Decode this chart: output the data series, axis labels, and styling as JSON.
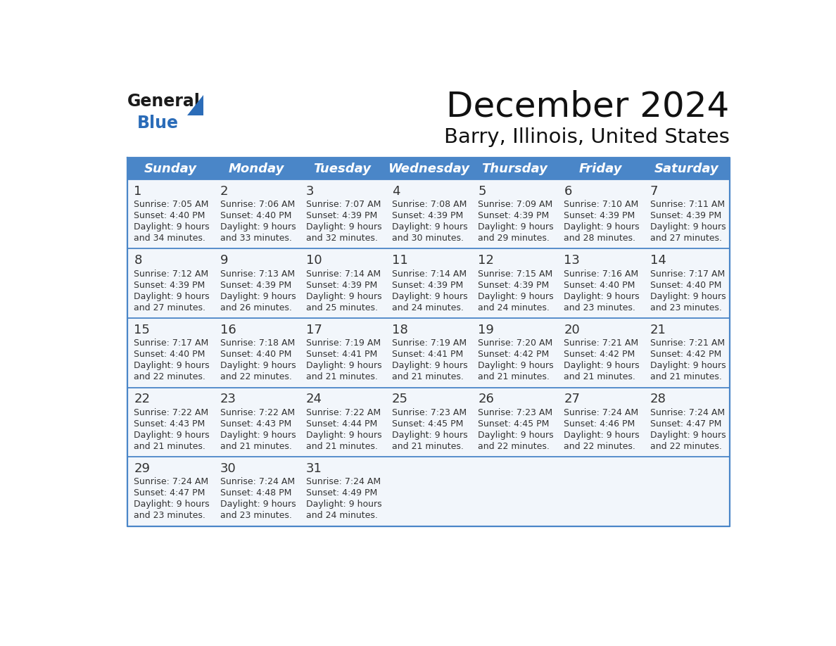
{
  "title": "December 2024",
  "subtitle": "Barry, Illinois, United States",
  "header_color": "#4a86c8",
  "header_text_color": "#ffffff",
  "day_names": [
    "Sunday",
    "Monday",
    "Tuesday",
    "Wednesday",
    "Thursday",
    "Friday",
    "Saturday"
  ],
  "days": [
    {
      "day": 1,
      "col": 0,
      "row": 0,
      "sunrise": "7:05 AM",
      "sunset": "4:40 PM",
      "daylight_hours": 9,
      "daylight_minutes": 34
    },
    {
      "day": 2,
      "col": 1,
      "row": 0,
      "sunrise": "7:06 AM",
      "sunset": "4:40 PM",
      "daylight_hours": 9,
      "daylight_minutes": 33
    },
    {
      "day": 3,
      "col": 2,
      "row": 0,
      "sunrise": "7:07 AM",
      "sunset": "4:39 PM",
      "daylight_hours": 9,
      "daylight_minutes": 32
    },
    {
      "day": 4,
      "col": 3,
      "row": 0,
      "sunrise": "7:08 AM",
      "sunset": "4:39 PM",
      "daylight_hours": 9,
      "daylight_minutes": 30
    },
    {
      "day": 5,
      "col": 4,
      "row": 0,
      "sunrise": "7:09 AM",
      "sunset": "4:39 PM",
      "daylight_hours": 9,
      "daylight_minutes": 29
    },
    {
      "day": 6,
      "col": 5,
      "row": 0,
      "sunrise": "7:10 AM",
      "sunset": "4:39 PM",
      "daylight_hours": 9,
      "daylight_minutes": 28
    },
    {
      "day": 7,
      "col": 6,
      "row": 0,
      "sunrise": "7:11 AM",
      "sunset": "4:39 PM",
      "daylight_hours": 9,
      "daylight_minutes": 27
    },
    {
      "day": 8,
      "col": 0,
      "row": 1,
      "sunrise": "7:12 AM",
      "sunset": "4:39 PM",
      "daylight_hours": 9,
      "daylight_minutes": 27
    },
    {
      "day": 9,
      "col": 1,
      "row": 1,
      "sunrise": "7:13 AM",
      "sunset": "4:39 PM",
      "daylight_hours": 9,
      "daylight_minutes": 26
    },
    {
      "day": 10,
      "col": 2,
      "row": 1,
      "sunrise": "7:14 AM",
      "sunset": "4:39 PM",
      "daylight_hours": 9,
      "daylight_minutes": 25
    },
    {
      "day": 11,
      "col": 3,
      "row": 1,
      "sunrise": "7:14 AM",
      "sunset": "4:39 PM",
      "daylight_hours": 9,
      "daylight_minutes": 24
    },
    {
      "day": 12,
      "col": 4,
      "row": 1,
      "sunrise": "7:15 AM",
      "sunset": "4:39 PM",
      "daylight_hours": 9,
      "daylight_minutes": 24
    },
    {
      "day": 13,
      "col": 5,
      "row": 1,
      "sunrise": "7:16 AM",
      "sunset": "4:40 PM",
      "daylight_hours": 9,
      "daylight_minutes": 23
    },
    {
      "day": 14,
      "col": 6,
      "row": 1,
      "sunrise": "7:17 AM",
      "sunset": "4:40 PM",
      "daylight_hours": 9,
      "daylight_minutes": 23
    },
    {
      "day": 15,
      "col": 0,
      "row": 2,
      "sunrise": "7:17 AM",
      "sunset": "4:40 PM",
      "daylight_hours": 9,
      "daylight_minutes": 22
    },
    {
      "day": 16,
      "col": 1,
      "row": 2,
      "sunrise": "7:18 AM",
      "sunset": "4:40 PM",
      "daylight_hours": 9,
      "daylight_minutes": 22
    },
    {
      "day": 17,
      "col": 2,
      "row": 2,
      "sunrise": "7:19 AM",
      "sunset": "4:41 PM",
      "daylight_hours": 9,
      "daylight_minutes": 21
    },
    {
      "day": 18,
      "col": 3,
      "row": 2,
      "sunrise": "7:19 AM",
      "sunset": "4:41 PM",
      "daylight_hours": 9,
      "daylight_minutes": 21
    },
    {
      "day": 19,
      "col": 4,
      "row": 2,
      "sunrise": "7:20 AM",
      "sunset": "4:42 PM",
      "daylight_hours": 9,
      "daylight_minutes": 21
    },
    {
      "day": 20,
      "col": 5,
      "row": 2,
      "sunrise": "7:21 AM",
      "sunset": "4:42 PM",
      "daylight_hours": 9,
      "daylight_minutes": 21
    },
    {
      "day": 21,
      "col": 6,
      "row": 2,
      "sunrise": "7:21 AM",
      "sunset": "4:42 PM",
      "daylight_hours": 9,
      "daylight_minutes": 21
    },
    {
      "day": 22,
      "col": 0,
      "row": 3,
      "sunrise": "7:22 AM",
      "sunset": "4:43 PM",
      "daylight_hours": 9,
      "daylight_minutes": 21
    },
    {
      "day": 23,
      "col": 1,
      "row": 3,
      "sunrise": "7:22 AM",
      "sunset": "4:43 PM",
      "daylight_hours": 9,
      "daylight_minutes": 21
    },
    {
      "day": 24,
      "col": 2,
      "row": 3,
      "sunrise": "7:22 AM",
      "sunset": "4:44 PM",
      "daylight_hours": 9,
      "daylight_minutes": 21
    },
    {
      "day": 25,
      "col": 3,
      "row": 3,
      "sunrise": "7:23 AM",
      "sunset": "4:45 PM",
      "daylight_hours": 9,
      "daylight_minutes": 21
    },
    {
      "day": 26,
      "col": 4,
      "row": 3,
      "sunrise": "7:23 AM",
      "sunset": "4:45 PM",
      "daylight_hours": 9,
      "daylight_minutes": 22
    },
    {
      "day": 27,
      "col": 5,
      "row": 3,
      "sunrise": "7:24 AM",
      "sunset": "4:46 PM",
      "daylight_hours": 9,
      "daylight_minutes": 22
    },
    {
      "day": 28,
      "col": 6,
      "row": 3,
      "sunrise": "7:24 AM",
      "sunset": "4:47 PM",
      "daylight_hours": 9,
      "daylight_minutes": 22
    },
    {
      "day": 29,
      "col": 0,
      "row": 4,
      "sunrise": "7:24 AM",
      "sunset": "4:47 PM",
      "daylight_hours": 9,
      "daylight_minutes": 23
    },
    {
      "day": 30,
      "col": 1,
      "row": 4,
      "sunrise": "7:24 AM",
      "sunset": "4:48 PM",
      "daylight_hours": 9,
      "daylight_minutes": 23
    },
    {
      "day": 31,
      "col": 2,
      "row": 4,
      "sunrise": "7:24 AM",
      "sunset": "4:49 PM",
      "daylight_hours": 9,
      "daylight_minutes": 24
    }
  ],
  "logo_color1": "#1a1a1a",
  "logo_color2": "#2b6cb8",
  "logo_triangle_color": "#2b6cb8",
  "bg_color": "#ffffff",
  "cell_bg": "#f2f6fb",
  "border_color": "#4a86c8",
  "text_color": "#333333",
  "day_number_color": "#333333"
}
